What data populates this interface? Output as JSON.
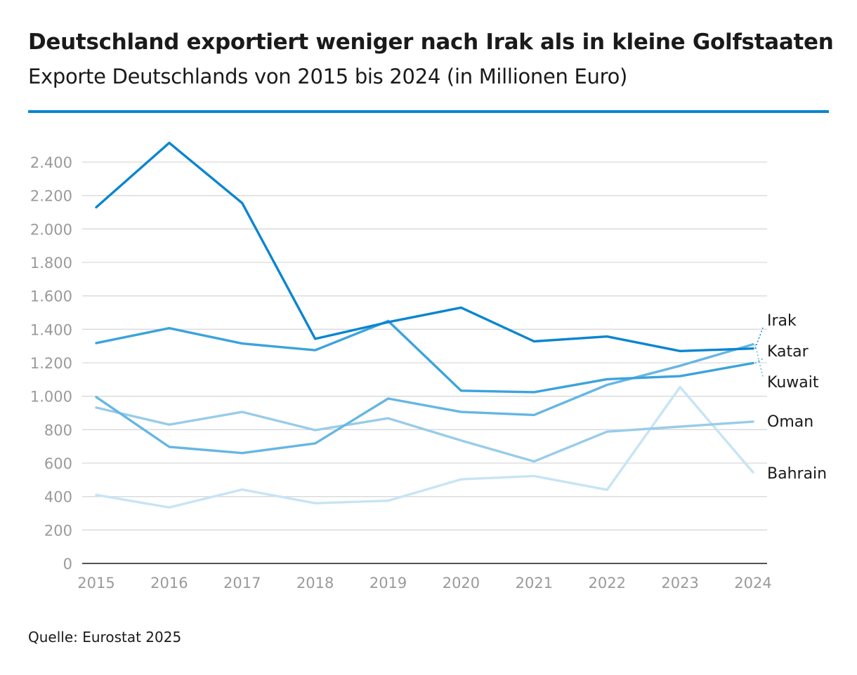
{
  "title": "Deutschland exportiert weniger nach Irak als in kleine Golfstaaten",
  "subtitle": "Exporte Deutschlands von 2015 bis 2024 (in Millionen Euro)",
  "source": "Quelle: Eurostat 2025",
  "colors": {
    "accent": "#0a85d0",
    "grid": "#d9d9d9",
    "axis": "#1a1a1a",
    "tick": "#9a9a9a"
  },
  "chart_data": {
    "type": "line",
    "xlabel": "",
    "ylabel": "",
    "ylim": [
      0,
      2400
    ],
    "yticks": [
      {
        "value": 0,
        "label": "0"
      },
      {
        "value": 200,
        "label": "200"
      },
      {
        "value": 400,
        "label": "400"
      },
      {
        "value": 600,
        "label": "600"
      },
      {
        "value": 800,
        "label": "800"
      },
      {
        "value": 1000,
        "label": "1.000"
      },
      {
        "value": 1200,
        "label": "1.200"
      },
      {
        "value": 1400,
        "label": "1.400"
      },
      {
        "value": 1600,
        "label": "1.600"
      },
      {
        "value": 1800,
        "label": "1.800"
      },
      {
        "value": 2000,
        "label": "2.000"
      },
      {
        "value": 2200,
        "label": "2.200"
      },
      {
        "value": 2400,
        "label": "2.400"
      }
    ],
    "categories": [
      "2015",
      "2016",
      "2017",
      "2018",
      "2019",
      "2020",
      "2021",
      "2022",
      "2023",
      "2024"
    ],
    "series": [
      {
        "name": "Bahrain",
        "color": "#c7e4f4",
        "values": [
          410,
          335,
          442,
          360,
          375,
          503,
          523,
          440,
          1055,
          545
        ]
      },
      {
        "name": "Oman",
        "color": "#98cce9",
        "values": [
          932,
          830,
          906,
          797,
          868,
          735,
          610,
          788,
          818,
          848
        ]
      },
      {
        "name": "Kuwait",
        "color": "#66b6e3",
        "values": [
          995,
          697,
          660,
          718,
          986,
          906,
          888,
          1068,
          1182,
          1310
        ]
      },
      {
        "name": "Katar",
        "color": "#3ba3dd",
        "values": [
          1318,
          1407,
          1315,
          1275,
          1450,
          1033,
          1024,
          1102,
          1120,
          1198
        ]
      },
      {
        "name": "Irak",
        "color": "#0a85d0",
        "values": [
          2130,
          2515,
          2155,
          1343,
          1443,
          1530,
          1328,
          1357,
          1270,
          1285
        ]
      }
    ],
    "legend": [
      {
        "name": "Irak",
        "series": "Irak"
      },
      {
        "name": "Katar",
        "series": "Katar"
      },
      {
        "name": "Kuwait",
        "series": "Kuwait"
      },
      {
        "name": "Oman",
        "series": "Oman"
      },
      {
        "name": "Bahrain",
        "series": "Bahrain"
      }
    ]
  }
}
